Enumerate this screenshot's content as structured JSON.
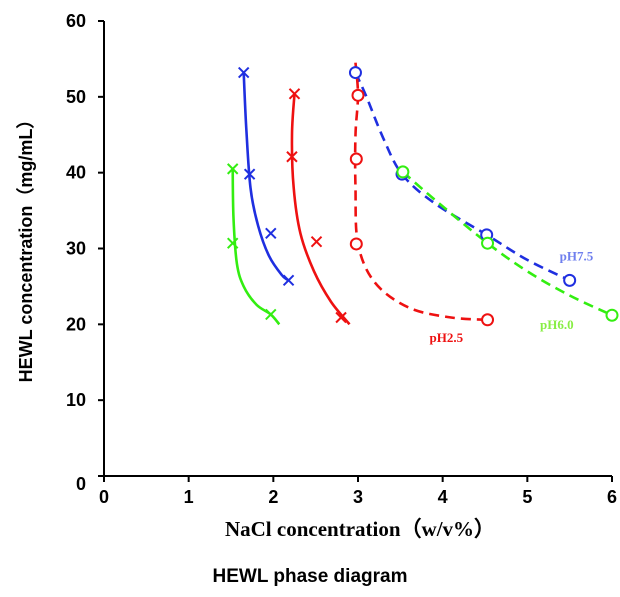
{
  "caption": "HEWL phase diagram",
  "chart_data": {
    "type": "scatter",
    "xlabel": "NaCl concentration（w/v%）",
    "ylabel": "HEWL concentration（mg/mL）",
    "xlim": [
      0,
      6
    ],
    "ylim": [
      0,
      60
    ],
    "xticks": [
      0,
      1,
      2,
      3,
      4,
      5,
      6
    ],
    "yticks": [
      0,
      10,
      20,
      30,
      40,
      50,
      60
    ],
    "grid": false,
    "colors": {
      "blue": "#1f2fe0",
      "red": "#ee1111",
      "green": "#33ee11",
      "blue_label": "#6f7fee",
      "green_label": "#88ee44",
      "red_label": "#ee1111"
    },
    "cross_series": [
      {
        "color": "blue",
        "points": [
          [
            1.65,
            53.2
          ],
          [
            1.72,
            39.8
          ],
          [
            1.97,
            32.0
          ],
          [
            2.18,
            25.8
          ]
        ]
      },
      {
        "color": "red",
        "points": [
          [
            2.25,
            50.4
          ],
          [
            2.22,
            42.1
          ],
          [
            2.51,
            30.9
          ],
          [
            2.8,
            20.9
          ]
        ]
      },
      {
        "color": "green",
        "points": [
          [
            1.52,
            40.5
          ],
          [
            1.52,
            30.7
          ],
          [
            1.97,
            21.3
          ]
        ]
      }
    ],
    "solid_curves": [
      {
        "color": "blue",
        "points": [
          [
            1.65,
            53.2
          ],
          [
            1.68,
            46
          ],
          [
            1.73,
            38
          ],
          [
            1.82,
            33
          ],
          [
            1.95,
            29
          ],
          [
            2.1,
            26.5
          ],
          [
            2.18,
            25.8
          ]
        ]
      },
      {
        "color": "red",
        "points": [
          [
            2.25,
            50.4
          ],
          [
            2.22,
            45
          ],
          [
            2.24,
            38
          ],
          [
            2.32,
            32
          ],
          [
            2.48,
            27
          ],
          [
            2.68,
            23
          ],
          [
            2.9,
            20.0
          ]
        ]
      },
      {
        "color": "green",
        "points": [
          [
            1.52,
            40.5
          ],
          [
            1.53,
            34
          ],
          [
            1.57,
            28
          ],
          [
            1.65,
            25
          ],
          [
            1.8,
            22.6
          ],
          [
            1.97,
            21.3
          ],
          [
            2.07,
            20.0
          ]
        ]
      }
    ],
    "circle_series": [
      {
        "name": "pH7.5",
        "color": "blue",
        "label_color": "blue_label",
        "points": [
          [
            2.97,
            53.2
          ],
          [
            3.52,
            39.8
          ],
          [
            4.52,
            31.8
          ],
          [
            5.5,
            25.8
          ]
        ]
      },
      {
        "name": "pH6.0",
        "color": "green",
        "label_color": "green_label",
        "points": [
          [
            3.53,
            40.1
          ],
          [
            4.53,
            30.7
          ],
          [
            6.0,
            21.2
          ]
        ]
      },
      {
        "name": "pH2.5",
        "color": "red",
        "label_color": "red_label",
        "points": [
          [
            3.0,
            50.2
          ],
          [
            2.98,
            41.8
          ],
          [
            2.98,
            30.6
          ],
          [
            4.53,
            20.6
          ]
        ]
      }
    ],
    "dashed_curves": [
      {
        "color": "blue",
        "points": [
          [
            2.97,
            53.2
          ],
          [
            3.1,
            50
          ],
          [
            3.3,
            44.5
          ],
          [
            3.52,
            39.8
          ],
          [
            3.9,
            36
          ],
          [
            4.52,
            31.8
          ],
          [
            5.0,
            28.5
          ],
          [
            5.5,
            25.8
          ]
        ]
      },
      {
        "color": "green",
        "points": [
          [
            3.53,
            40.1
          ],
          [
            3.9,
            36.5
          ],
          [
            4.53,
            30.7
          ],
          [
            5.0,
            27
          ],
          [
            5.5,
            23.8
          ],
          [
            6.0,
            21.2
          ]
        ]
      },
      {
        "color": "red",
        "points": [
          [
            2.97,
            54.5
          ],
          [
            3.0,
            50.2
          ],
          [
            2.97,
            45
          ],
          [
            2.97,
            38
          ],
          [
            3.0,
            30.6
          ],
          [
            3.2,
            25.5
          ],
          [
            3.6,
            22.2
          ],
          [
            4.1,
            20.9
          ],
          [
            4.53,
            20.6
          ]
        ]
      }
    ]
  }
}
